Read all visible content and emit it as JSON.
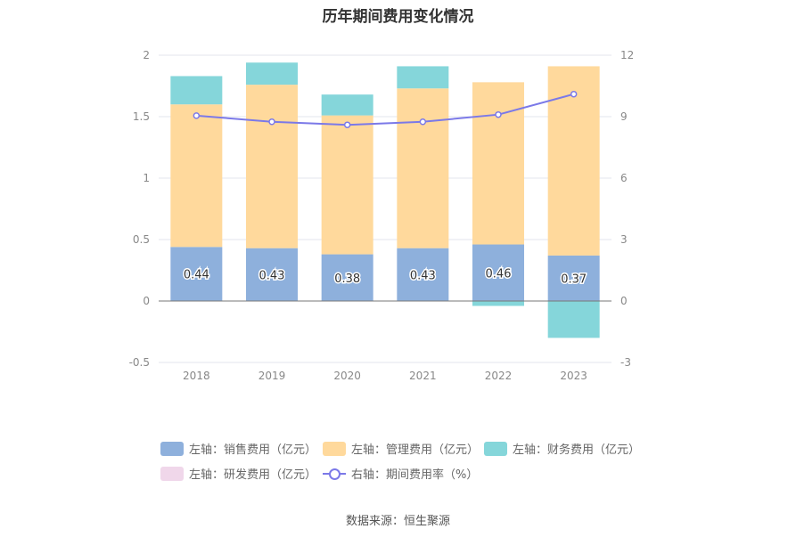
{
  "title": "历年期间费用变化情况",
  "source": "数据来源：恒生聚源",
  "colors": {
    "sales": "#8eb0dc",
    "admin": "#ffd99c",
    "finance": "#85d6da",
    "rd": "#f0d7ea",
    "rate": "#7b79e8"
  },
  "legend": [
    {
      "key": "sales",
      "label": "左轴：销售费用（亿元）"
    },
    {
      "key": "admin",
      "label": "左轴：管理费用（亿元）"
    },
    {
      "key": "finance",
      "label": "左轴：财务费用（亿元）"
    },
    {
      "key": "rd",
      "label": "左轴：研发费用（亿元）"
    },
    {
      "key": "rate",
      "label": "右轴：期间费用率（%）"
    }
  ],
  "chart_data": {
    "type": "bar",
    "title": "历年期间费用变化情况",
    "categories": [
      "2018",
      "2019",
      "2020",
      "2021",
      "2022",
      "2023"
    ],
    "series": [
      {
        "name": "左轴：销售费用（亿元）",
        "key": "sales",
        "axis": "left",
        "stack": true,
        "values": [
          0.44,
          0.43,
          0.38,
          0.43,
          0.46,
          0.37
        ],
        "labels": [
          "0.44",
          "0.43",
          "0.38",
          "0.43",
          "0.46",
          "0.37"
        ]
      },
      {
        "name": "左轴：管理费用（亿元）",
        "key": "admin",
        "axis": "left",
        "stack": true,
        "values": [
          1.16,
          1.33,
          1.13,
          1.3,
          1.32,
          1.54
        ]
      },
      {
        "name": "左轴：财务费用（亿元）",
        "key": "finance",
        "axis": "left",
        "stack": true,
        "values": [
          0.23,
          0.18,
          0.17,
          0.18,
          -0.04,
          -0.3
        ]
      },
      {
        "name": "左轴：研发费用（亿元）",
        "key": "rd",
        "axis": "left",
        "stack": true,
        "values": [
          0,
          0,
          0,
          0,
          0,
          0
        ]
      },
      {
        "name": "右轴：期间费用率（%）",
        "key": "rate",
        "axis": "right",
        "type": "line",
        "values": [
          9.05,
          8.75,
          8.6,
          8.75,
          9.1,
          10.1
        ]
      }
    ],
    "left_axis": {
      "min": -0.5,
      "max": 2,
      "ticks": [
        "-0.5",
        "0",
        "0.5",
        "1",
        "1.5",
        "2"
      ],
      "tick_values": [
        -0.5,
        0,
        0.5,
        1,
        1.5,
        2
      ]
    },
    "right_axis": {
      "min": -3,
      "max": 12,
      "ticks": [
        "-3",
        "0",
        "3",
        "6",
        "9",
        "12"
      ],
      "tick_values": [
        -3,
        0,
        3,
        6,
        9,
        12
      ]
    },
    "grid": true,
    "legend_position": "bottom"
  }
}
